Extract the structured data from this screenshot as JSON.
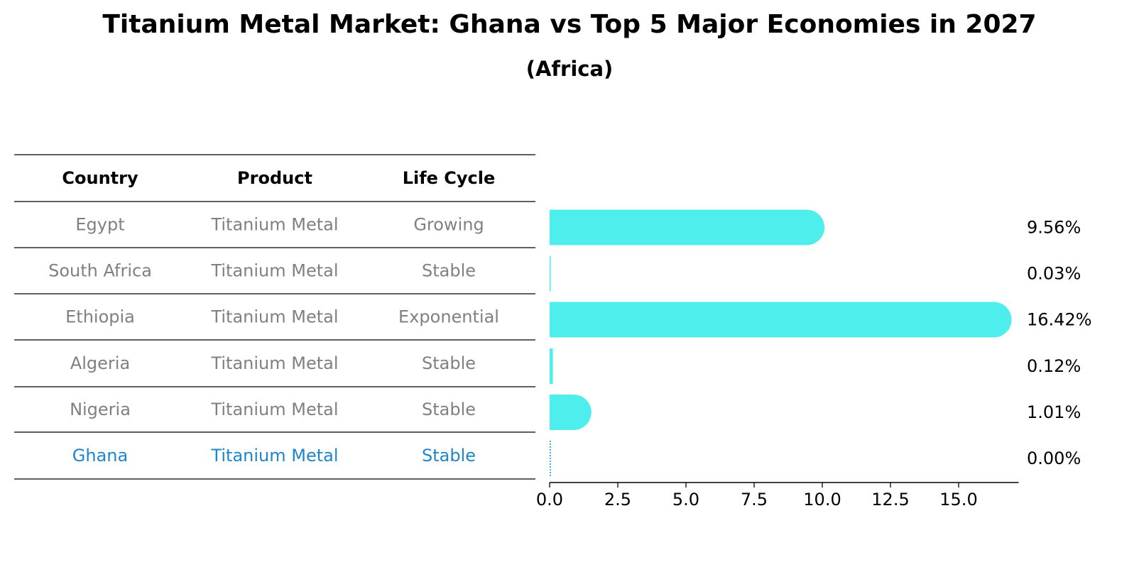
{
  "title": "Titanium Metal Market: Ghana vs Top 5 Major Economies in 2027",
  "subtitle": "(Africa)",
  "table": {
    "headers": [
      "Country",
      "Product",
      "Life Cycle"
    ],
    "rows": [
      {
        "country": "Egypt",
        "product": "Titanium Metal",
        "life_cycle": "Growing",
        "highlight": false
      },
      {
        "country": "South Africa",
        "product": "Titanium Metal",
        "life_cycle": "Stable",
        "highlight": false
      },
      {
        "country": "Ethiopia",
        "product": "Titanium Metal",
        "life_cycle": "Exponential",
        "highlight": false
      },
      {
        "country": "Algeria",
        "product": "Titanium Metal",
        "life_cycle": "Stable",
        "highlight": false
      },
      {
        "country": "Nigeria",
        "product": "Titanium Metal",
        "life_cycle": "Stable",
        "highlight": false
      },
      {
        "country": "Ghana",
        "product": "Titanium Metal",
        "life_cycle": "Stable",
        "highlight": true
      }
    ]
  },
  "colors": {
    "bar": "#4eeeec",
    "highlight": "#1f86c9",
    "row_text": "#808080",
    "text": "#000000",
    "rule": "#000000"
  },
  "chart_data": {
    "type": "bar",
    "orientation": "horizontal",
    "categories": [
      "Egypt",
      "South Africa",
      "Ethiopia",
      "Algeria",
      "Nigeria",
      "Ghana"
    ],
    "values": [
      9.56,
      0.03,
      16.42,
      0.12,
      1.01,
      0.0
    ],
    "value_labels": [
      "9.56%",
      "0.03%",
      "16.42%",
      "0.12%",
      "1.01%",
      "0.00%"
    ],
    "xlim": [
      0,
      17.2
    ],
    "xticks": [
      0.0,
      2.5,
      5.0,
      7.5,
      10.0,
      12.5,
      15.0
    ],
    "xtick_labels": [
      "0.0",
      "2.5",
      "5.0",
      "7.5",
      "10.0",
      "12.5",
      "15.0"
    ],
    "grid": false
  }
}
